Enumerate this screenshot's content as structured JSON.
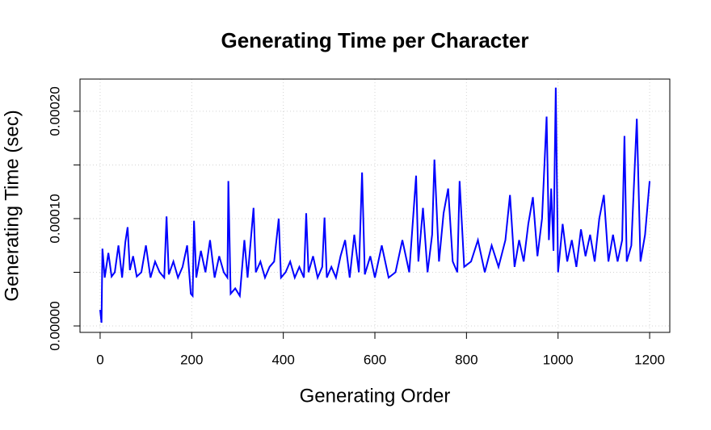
{
  "chart_data": {
    "type": "line",
    "title": "Generating Time per Character",
    "x_label": "Generating Order",
    "y_label": "Generating Time (sec)",
    "x": [
      0,
      3,
      5,
      10,
      18,
      25,
      32,
      40,
      48,
      55,
      60,
      65,
      72,
      80,
      90,
      100,
      110,
      120,
      130,
      140,
      145,
      150,
      160,
      170,
      180,
      190,
      198,
      202,
      205,
      210,
      220,
      230,
      240,
      250,
      260,
      270,
      278,
      280,
      285,
      295,
      305,
      315,
      322,
      328,
      335,
      340,
      350,
      360,
      370,
      380,
      390,
      395,
      405,
      415,
      425,
      435,
      445,
      450,
      455,
      465,
      475,
      485,
      490,
      495,
      505,
      515,
      525,
      535,
      545,
      555,
      565,
      572,
      578,
      590,
      600,
      615,
      630,
      645,
      660,
      675,
      690,
      695,
      705,
      715,
      725,
      730,
      740,
      750,
      760,
      770,
      780,
      785,
      795,
      810,
      825,
      840,
      855,
      870,
      885,
      895,
      905,
      915,
      925,
      935,
      945,
      955,
      965,
      975,
      980,
      985,
      990,
      995,
      1000,
      1010,
      1020,
      1030,
      1040,
      1050,
      1060,
      1070,
      1080,
      1090,
      1100,
      1110,
      1120,
      1130,
      1140,
      1145,
      1150,
      1160,
      1172,
      1180,
      1190,
      1195,
      1200
    ],
    "series": [
      {
        "name": "time",
        "color": "#0000ff",
        "values": [
          1.5e-05,
          3e-06,
          7.2e-05,
          4.5e-05,
          6.8e-05,
          4.6e-05,
          5e-05,
          7.5e-05,
          4.5e-05,
          7.8e-05,
          9.2e-05,
          5.2e-05,
          6.5e-05,
          4.6e-05,
          5e-05,
          7.5e-05,
          4.5e-05,
          6e-05,
          5e-05,
          4.5e-05,
          0.000102,
          4.8e-05,
          6e-05,
          4.5e-05,
          5.5e-05,
          7.5e-05,
          3e-05,
          2.8e-05,
          9.8e-05,
          4.5e-05,
          7e-05,
          5e-05,
          8e-05,
          4.5e-05,
          6.5e-05,
          5e-05,
          4.5e-05,
          0.000135,
          3e-05,
          3.5e-05,
          2.8e-05,
          8e-05,
          4.5e-05,
          7.5e-05,
          0.00011,
          5e-05,
          6e-05,
          4.5e-05,
          5.5e-05,
          6e-05,
          0.0001,
          4.5e-05,
          5e-05,
          6e-05,
          4.5e-05,
          5.5e-05,
          4.5e-05,
          0.000105,
          5e-05,
          6.5e-05,
          4.5e-05,
          5.5e-05,
          0.000101,
          4.5e-05,
          5.5e-05,
          4.5e-05,
          6.5e-05,
          8e-05,
          4.5e-05,
          8.5e-05,
          5e-05,
          0.000143,
          4.8e-05,
          6.5e-05,
          4.5e-05,
          7.5e-05,
          4.5e-05,
          5e-05,
          8e-05,
          5e-05,
          0.00014,
          6e-05,
          0.00011,
          5e-05,
          8.5e-05,
          0.000155,
          6e-05,
          0.000105,
          0.000128,
          6e-05,
          5e-05,
          0.000135,
          5.5e-05,
          6e-05,
          8e-05,
          5e-05,
          7.5e-05,
          5.5e-05,
          8e-05,
          0.000122,
          5.5e-05,
          8e-05,
          6e-05,
          9.5e-05,
          0.00012,
          6.5e-05,
          0.0001,
          0.000195,
          8e-05,
          0.000128,
          7e-05,
          0.000222,
          5e-05,
          9.5e-05,
          6e-05,
          8e-05,
          5.5e-05,
          9e-05,
          6.5e-05,
          8.5e-05,
          6e-05,
          0.0001,
          0.000122,
          6e-05,
          8.5e-05,
          6e-05,
          8e-05,
          0.000177,
          6e-05,
          7.5e-05,
          0.000193,
          6e-05,
          8.5e-05,
          0.00011,
          0.000135
        ]
      }
    ],
    "xlim": [
      -44,
      1244
    ],
    "ylim": [
      -6e-06,
      0.00023
    ],
    "xticks": [
      0,
      200,
      400,
      600,
      800,
      1000,
      1200
    ],
    "yticks": [
      {
        "value": 0,
        "label": "0.00000"
      },
      {
        "value": 5e-05,
        "label": null
      },
      {
        "value": 0.0001,
        "label": "0.00010"
      },
      {
        "value": 0.00015,
        "label": null
      },
      {
        "value": 0.0002,
        "label": "0.00020"
      }
    ],
    "grid": true
  }
}
